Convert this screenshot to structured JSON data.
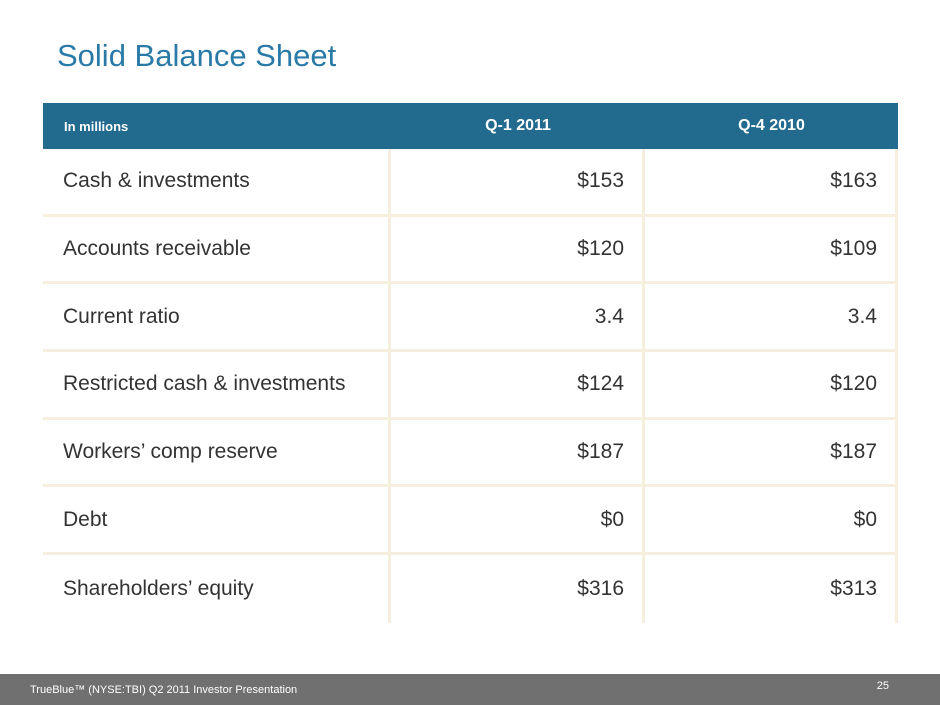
{
  "slide": {
    "title": "Solid Balance Sheet",
    "page_number": "25"
  },
  "table": {
    "headers": [
      "In millions",
      "Q-1 2011",
      "Q-4 2010"
    ],
    "rows": [
      [
        "Cash & investments",
        "$153",
        "$163"
      ],
      [
        "Accounts receivable",
        "$120",
        "$109"
      ],
      [
        "Current ratio",
        "3.4",
        "3.4"
      ],
      [
        "Restricted cash & investments",
        "$124",
        "$120"
      ],
      [
        "Workers’ comp reserve",
        "$187",
        "$187"
      ],
      [
        "Debt",
        "$0",
        "$0"
      ],
      [
        "Shareholders’ equity",
        "$316",
        "$313"
      ]
    ]
  },
  "footer": {
    "text": "TrueBlue™ (NYSE:TBI) Q2 2011 Investor Presentation"
  },
  "colors": {
    "title": "#2a7aa8",
    "header_bg": "#236a8f",
    "grid_line": "#f6efdd",
    "footer_bg": "#707070"
  }
}
